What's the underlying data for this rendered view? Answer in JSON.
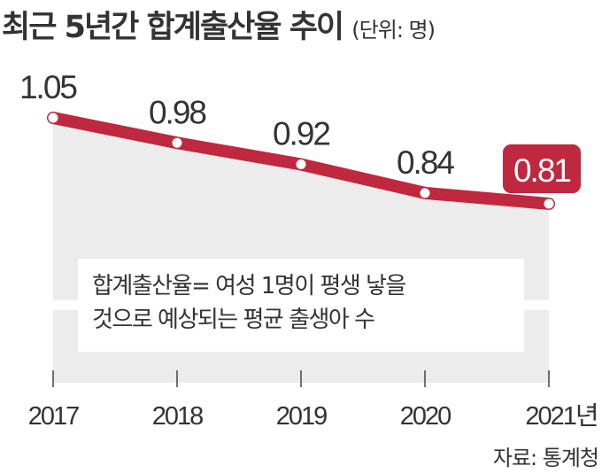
{
  "title": "최근 5년간 합계출산율 추이",
  "unit": "(단위: 명)",
  "note": [
    "합계출산율= 여성 1명이 평생 낳을",
    "것으로 예상되는 평균 출생아 수"
  ],
  "source": "자료: 통계청",
  "colors": {
    "line": "#c0283f",
    "area": "#ececec",
    "text": "#333333"
  },
  "chart_data": {
    "type": "line",
    "title": "최근 5년간 합계출산율 추이",
    "categories": [
      "2017",
      "2018",
      "2019",
      "2020",
      "2021년"
    ],
    "values": [
      1.05,
      0.98,
      0.92,
      0.84,
      0.81
    ],
    "labels": [
      "1.05",
      "0.98",
      "0.92",
      "0.84",
      "0.81"
    ],
    "highlight_index": 4,
    "ylabel": "명",
    "xlabel": ""
  }
}
